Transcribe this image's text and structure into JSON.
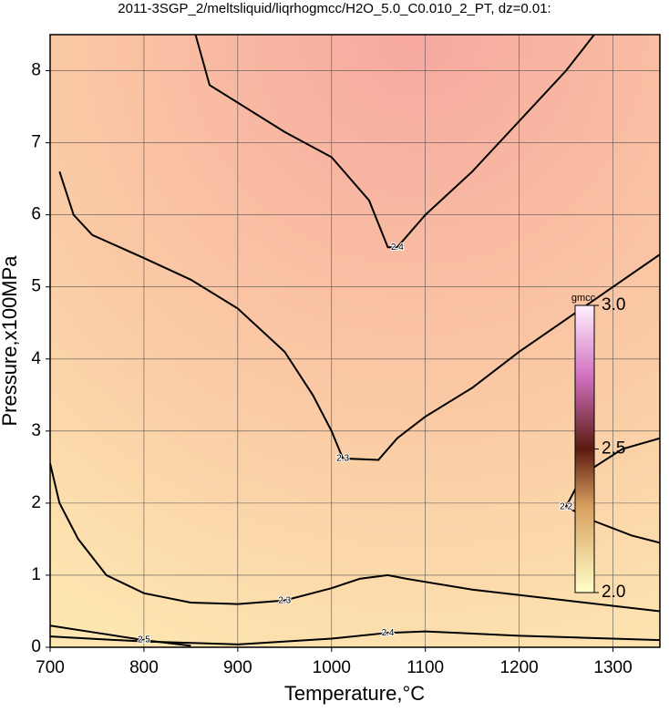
{
  "chart_data": {
    "type": "contour",
    "title": "2011-3SGP_2/meltsliquid/liqrhogmcc/H2O_5.0_C0.010_2_PT, dz=0.01:",
    "xlabel": "Temperature,°C",
    "ylabel": "Pressure,x100MPa",
    "xlim": [
      700,
      1350
    ],
    "ylim": [
      0,
      8.5
    ],
    "xticks": [
      700,
      800,
      900,
      1000,
      1100,
      1200,
      1300
    ],
    "yticks": [
      0,
      1,
      2,
      3,
      4,
      5,
      6,
      7,
      8
    ],
    "grid": true,
    "colorbar": {
      "label": "gmcc",
      "lim": [
        2,
        3
      ],
      "ticks": [
        {
          "value": 2,
          "label": "2.0"
        },
        {
          "value": 2.5,
          "label": "2.5"
        },
        {
          "value": 3,
          "label": "3.0"
        }
      ]
    },
    "contours": [
      {
        "level": 2.4,
        "x": [
          855,
          870,
          950,
          1000,
          1040,
          1060,
          1070,
          1100,
          1150,
          1200,
          1250,
          1280
        ],
        "y": [
          8.5,
          7.8,
          7.15,
          6.8,
          6.2,
          5.55,
          5.55,
          6.0,
          6.6,
          7.3,
          8.0,
          8.5
        ]
      },
      {
        "level": 2.3,
        "x": [
          710,
          725,
          745,
          800,
          850,
          900,
          950,
          980,
          1000,
          1012,
          1050,
          1070,
          1100,
          1150,
          1200,
          1250,
          1300,
          1350
        ],
        "y": [
          6.6,
          6.0,
          5.72,
          5.4,
          5.1,
          4.7,
          4.1,
          3.5,
          3.0,
          2.62,
          2.6,
          2.9,
          3.2,
          3.6,
          4.1,
          4.55,
          5.0,
          5.45
        ]
      },
      {
        "level": 2.3,
        "x": [
          700,
          710,
          730,
          760,
          800,
          850,
          900,
          950,
          1000,
          1030,
          1060,
          1080,
          1150,
          1250,
          1350
        ],
        "y": [
          2.55,
          2.0,
          1.5,
          1.0,
          0.75,
          0.62,
          0.6,
          0.65,
          0.82,
          0.95,
          1.0,
          0.95,
          0.8,
          0.65,
          0.5
        ]
      },
      {
        "level": 2.4,
        "x": [
          700,
          800,
          900,
          1000,
          1060,
          1100,
          1200,
          1350
        ],
        "y": [
          0.15,
          0.08,
          0.04,
          0.12,
          0.2,
          0.22,
          0.16,
          0.1
        ]
      },
      {
        "level": 2.5,
        "x": [
          700,
          750,
          800,
          850
        ],
        "y": [
          0.3,
          0.2,
          0.1,
          0.02
        ]
      },
      {
        "level": 2.2,
        "x": [
          1350,
          1310,
          1280,
          1260,
          1250,
          1280,
          1320,
          1350
        ],
        "y": [
          2.9,
          2.75,
          2.5,
          2.2,
          1.95,
          1.75,
          1.55,
          1.45
        ]
      }
    ]
  }
}
